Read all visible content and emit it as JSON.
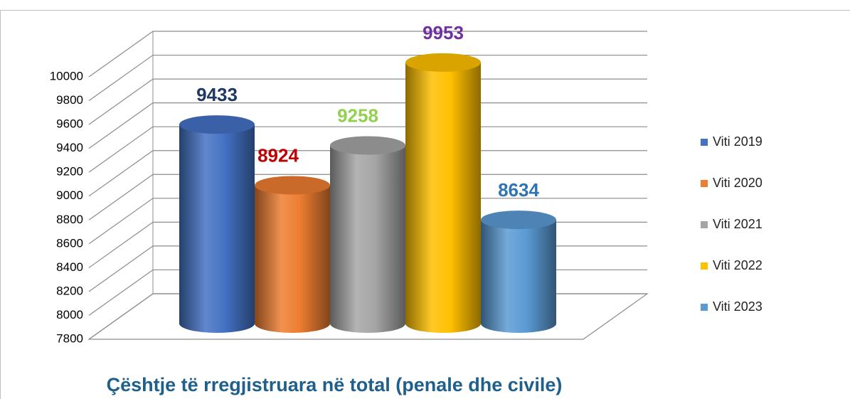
{
  "chart_data": {
    "type": "bar",
    "title": "Çështje të rregjistruara në total (penale dhe civile)",
    "categories": [
      null
    ],
    "series": [
      {
        "name": "Viti 2019",
        "color": "#4472c4",
        "label_color": "#1f3864",
        "values": [
          9433
        ]
      },
      {
        "name": "Viti 2020",
        "color": "#ed7d31",
        "label_color": "#c00000",
        "values": [
          8924
        ]
      },
      {
        "name": "Viti 2021",
        "color": "#a5a5a5",
        "label_color": "#92d050",
        "values": [
          9258
        ]
      },
      {
        "name": "Viti 2022",
        "color": "#ffc000",
        "label_color": "#7030a0",
        "values": [
          9953
        ]
      },
      {
        "name": "Viti 2023",
        "color": "#5b9bd5",
        "label_color": "#2e75b6",
        "values": [
          8634
        ]
      }
    ],
    "ylim": [
      7800,
      10000
    ],
    "yticks": [
      7800,
      8000,
      8200,
      8400,
      8600,
      8800,
      9000,
      9200,
      9400,
      9600,
      9800,
      10000
    ],
    "grid": true,
    "legend": "right"
  }
}
